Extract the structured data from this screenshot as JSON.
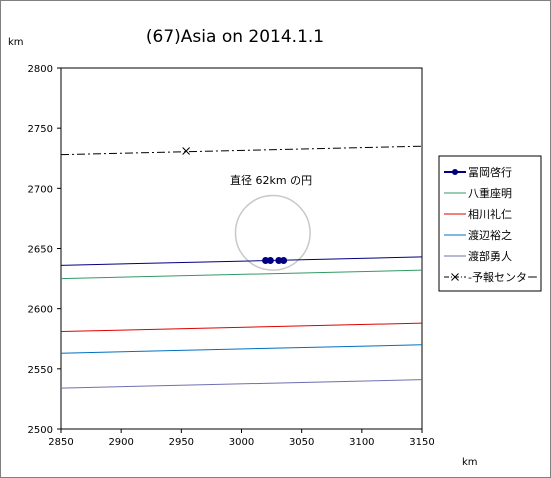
{
  "chart_data": {
    "type": "line",
    "title": "(67)Asia on 2014.1.1",
    "xlabel": "km",
    "ylabel": "km",
    "xlim": [
      2850,
      3150
    ],
    "ylim": [
      2500,
      2800
    ],
    "xticks": [
      2850,
      2900,
      2950,
      3000,
      3050,
      3100,
      3150
    ],
    "yticks": [
      2500,
      2550,
      2600,
      2650,
      2700,
      2750,
      2800
    ],
    "grid": false,
    "legend_position": "right",
    "annotation": "直径 62km の円",
    "circle": {
      "cx": 3026,
      "cy": 2663,
      "diameter": 62,
      "color": "#c8c8c8"
    },
    "series": [
      {
        "name": "冨岡啓行",
        "color": "#000080",
        "style": "solid-with-points",
        "x": [
          2850,
          3150
        ],
        "y": [
          2636,
          2643
        ],
        "points": {
          "x": [
            3020,
            3024,
            3031,
            3035
          ],
          "y": [
            2640,
            2640,
            2640,
            2640
          ]
        }
      },
      {
        "name": "八重座明",
        "color": "#339966",
        "style": "solid",
        "x": [
          2850,
          3150
        ],
        "y": [
          2625,
          2632
        ]
      },
      {
        "name": "相川礼仁",
        "color": "#e00000",
        "style": "solid",
        "x": [
          2850,
          3150
        ],
        "y": [
          2581,
          2588
        ]
      },
      {
        "name": "渡辺裕之",
        "color": "#0070c0",
        "style": "solid",
        "x": [
          2850,
          3150
        ],
        "y": [
          2563,
          2570
        ]
      },
      {
        "name": "渡部勇人",
        "color": "#7070b0",
        "style": "solid",
        "x": [
          2850,
          3150
        ],
        "y": [
          2534,
          2541
        ]
      },
      {
        "name": "-予報センター",
        "color": "#000000",
        "style": "dash-dot",
        "x": [
          2850,
          3150
        ],
        "y": [
          2728,
          2735
        ],
        "points": {
          "x": [
            2954
          ],
          "y": [
            2731
          ]
        }
      }
    ]
  }
}
